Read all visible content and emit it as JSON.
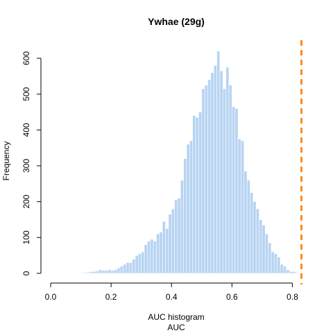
{
  "chart_data": {
    "type": "bar",
    "title": "Ywhae (29g)",
    "xlabel": "AUC histogram",
    "xlabel2": "AUC",
    "ylabel": "Frequency",
    "xlim": [
      0.0,
      0.83
    ],
    "ylim": [
      0,
      600
    ],
    "bin_width": 0.01,
    "x_ticks": [
      0.0,
      0.2,
      0.4,
      0.6,
      0.8
    ],
    "x_tick_labels": [
      "0.0",
      "0.2",
      "0.4",
      "0.6",
      "0.8"
    ],
    "y_ticks": [
      0,
      100,
      200,
      300,
      400,
      500,
      600
    ],
    "y_tick_labels": [
      "0",
      "100",
      "200",
      "300",
      "400",
      "500",
      "600"
    ],
    "grid": false,
    "bar_color": "#b8d4f2",
    "bar_edge_color": "#ffffff",
    "reference_line": {
      "x": 0.83,
      "color": "#ff8c1a",
      "style": "dashed"
    },
    "bins": [
      {
        "x0": 0.07,
        "count": 1
      },
      {
        "x0": 0.08,
        "count": 1
      },
      {
        "x0": 0.09,
        "count": 1
      },
      {
        "x0": 0.1,
        "count": 2
      },
      {
        "x0": 0.11,
        "count": 2
      },
      {
        "x0": 0.12,
        "count": 3
      },
      {
        "x0": 0.13,
        "count": 5
      },
      {
        "x0": 0.14,
        "count": 5
      },
      {
        "x0": 0.15,
        "count": 7
      },
      {
        "x0": 0.16,
        "count": 10
      },
      {
        "x0": 0.17,
        "count": 8
      },
      {
        "x0": 0.18,
        "count": 8
      },
      {
        "x0": 0.19,
        "count": 10
      },
      {
        "x0": 0.2,
        "count": 8
      },
      {
        "x0": 0.21,
        "count": 10
      },
      {
        "x0": 0.22,
        "count": 15
      },
      {
        "x0": 0.23,
        "count": 20
      },
      {
        "x0": 0.24,
        "count": 25
      },
      {
        "x0": 0.25,
        "count": 30
      },
      {
        "x0": 0.26,
        "count": 30
      },
      {
        "x0": 0.27,
        "count": 40
      },
      {
        "x0": 0.28,
        "count": 50
      },
      {
        "x0": 0.29,
        "count": 55
      },
      {
        "x0": 0.3,
        "count": 60
      },
      {
        "x0": 0.31,
        "count": 80
      },
      {
        "x0": 0.32,
        "count": 90
      },
      {
        "x0": 0.33,
        "count": 95
      },
      {
        "x0": 0.34,
        "count": 90
      },
      {
        "x0": 0.35,
        "count": 110
      },
      {
        "x0": 0.36,
        "count": 115
      },
      {
        "x0": 0.37,
        "count": 145
      },
      {
        "x0": 0.38,
        "count": 125
      },
      {
        "x0": 0.39,
        "count": 165
      },
      {
        "x0": 0.4,
        "count": 180
      },
      {
        "x0": 0.41,
        "count": 205
      },
      {
        "x0": 0.42,
        "count": 210
      },
      {
        "x0": 0.43,
        "count": 260
      },
      {
        "x0": 0.44,
        "count": 320
      },
      {
        "x0": 0.45,
        "count": 360
      },
      {
        "x0": 0.46,
        "count": 370
      },
      {
        "x0": 0.47,
        "count": 440
      },
      {
        "x0": 0.48,
        "count": 435
      },
      {
        "x0": 0.49,
        "count": 450
      },
      {
        "x0": 0.5,
        "count": 515
      },
      {
        "x0": 0.51,
        "count": 525
      },
      {
        "x0": 0.52,
        "count": 540
      },
      {
        "x0": 0.53,
        "count": 560
      },
      {
        "x0": 0.54,
        "count": 580
      },
      {
        "x0": 0.55,
        "count": 620
      },
      {
        "x0": 0.56,
        "count": 565
      },
      {
        "x0": 0.57,
        "count": 515
      },
      {
        "x0": 0.58,
        "count": 575
      },
      {
        "x0": 0.59,
        "count": 525
      },
      {
        "x0": 0.6,
        "count": 465
      },
      {
        "x0": 0.61,
        "count": 460
      },
      {
        "x0": 0.62,
        "count": 375
      },
      {
        "x0": 0.63,
        "count": 370
      },
      {
        "x0": 0.64,
        "count": 285
      },
      {
        "x0": 0.65,
        "count": 260
      },
      {
        "x0": 0.66,
        "count": 225
      },
      {
        "x0": 0.67,
        "count": 200
      },
      {
        "x0": 0.68,
        "count": 180
      },
      {
        "x0": 0.69,
        "count": 150
      },
      {
        "x0": 0.7,
        "count": 135
      },
      {
        "x0": 0.71,
        "count": 110
      },
      {
        "x0": 0.72,
        "count": 85
      },
      {
        "x0": 0.73,
        "count": 60
      },
      {
        "x0": 0.74,
        "count": 55
      },
      {
        "x0": 0.75,
        "count": 45
      },
      {
        "x0": 0.76,
        "count": 25
      },
      {
        "x0": 0.77,
        "count": 20
      },
      {
        "x0": 0.78,
        "count": 10
      },
      {
        "x0": 0.79,
        "count": 5
      },
      {
        "x0": 0.8,
        "count": 5
      },
      {
        "x0": 0.81,
        "count": 2
      },
      {
        "x0": 0.82,
        "count": 1
      }
    ]
  }
}
